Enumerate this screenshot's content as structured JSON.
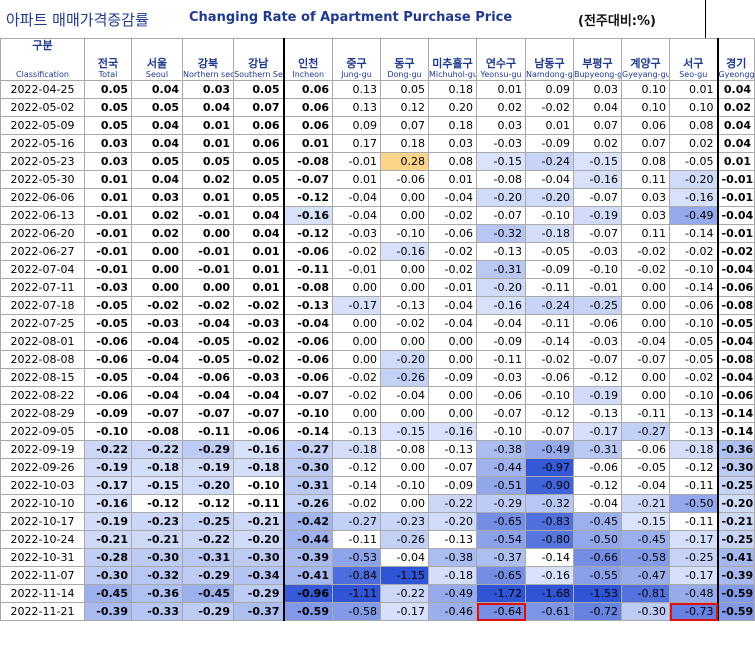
{
  "title": {
    "korean": "아파트 매매가격증감률",
    "english": "Changing Rate of Apartment Purchase Price",
    "unit": "(전주대비:%)"
  },
  "columns": [
    {
      "key": "date",
      "ko": "구분",
      "en": "Classification"
    },
    {
      "key": "total",
      "ko": "전국",
      "en": "Total"
    },
    {
      "key": "seoul",
      "ko": "서울",
      "en": "Seoul"
    },
    {
      "key": "northern",
      "ko": "강북",
      "en": "Northern seoul"
    },
    {
      "key": "southern",
      "ko": "강남",
      "en": "Southern Seoul"
    },
    {
      "key": "incheon",
      "ko": "인천",
      "en": "Incheon"
    },
    {
      "key": "jung",
      "ko": "중구",
      "en": "Jung-gu"
    },
    {
      "key": "dong",
      "ko": "동구",
      "en": "Dong-gu"
    },
    {
      "key": "michuhol",
      "ko": "미추홀구",
      "en": "Michuhol-gu"
    },
    {
      "key": "yeonsu",
      "ko": "연수구",
      "en": "Yeonsu-gu"
    },
    {
      "key": "namdong",
      "ko": "남동구",
      "en": "Namdong-gu"
    },
    {
      "key": "bupyeong",
      "ko": "부평구",
      "en": "Bupyeong-gu"
    },
    {
      "key": "gyeyang",
      "ko": "계양구",
      "en": "Gyeyang-gu"
    },
    {
      "key": "seo",
      "ko": "서구",
      "en": "Seo-gu"
    },
    {
      "key": "gyeonggi",
      "ko": "경기",
      "en": "Gyeonggi-do"
    }
  ],
  "rows": [
    {
      "date": "2022-04-25",
      "v": [
        "0.05",
        "0.04",
        "0.03",
        "0.05",
        "0.06",
        "0.13",
        "0.05",
        "0.18",
        "0.01",
        "0.09",
        "0.03",
        "0.10",
        "0.01",
        "0.04"
      ]
    },
    {
      "date": "2022-05-02",
      "v": [
        "0.05",
        "0.05",
        "0.04",
        "0.07",
        "0.06",
        "0.13",
        "0.12",
        "0.20",
        "0.02",
        "-0.02",
        "0.04",
        "0.10",
        "0.10",
        "0.02"
      ]
    },
    {
      "date": "2022-05-09",
      "v": [
        "0.05",
        "0.04",
        "0.01",
        "0.06",
        "0.06",
        "0.09",
        "0.07",
        "0.18",
        "0.03",
        "0.01",
        "0.07",
        "0.06",
        "0.08",
        "0.04"
      ]
    },
    {
      "date": "2022-05-16",
      "v": [
        "0.03",
        "0.04",
        "0.01",
        "0.06",
        "0.01",
        "0.17",
        "0.18",
        "0.03",
        "-0.03",
        "-0.09",
        "0.02",
        "0.07",
        "0.02",
        "0.04"
      ]
    },
    {
      "date": "2022-05-23",
      "v": [
        "0.03",
        "0.05",
        "0.05",
        "0.05",
        "-0.08",
        "-0.01",
        "0.28",
        "0.08",
        "-0.15",
        "-0.24",
        "-0.15",
        "0.08",
        "-0.05",
        "0.01"
      ]
    },
    {
      "date": "2022-05-30",
      "v": [
        "0.01",
        "0.04",
        "0.02",
        "0.05",
        "-0.07",
        "0.01",
        "-0.06",
        "0.01",
        "-0.08",
        "-0.04",
        "-0.16",
        "0.11",
        "-0.20",
        "-0.01"
      ]
    },
    {
      "date": "2022-06-06",
      "v": [
        "0.01",
        "0.03",
        "0.01",
        "0.05",
        "-0.12",
        "-0.04",
        "0.00",
        "-0.04",
        "-0.20",
        "-0.20",
        "-0.07",
        "0.03",
        "-0.16",
        "-0.01"
      ]
    },
    {
      "date": "2022-06-13",
      "v": [
        "-0.01",
        "0.02",
        "-0.01",
        "0.04",
        "-0.16",
        "-0.04",
        "0.00",
        "-0.02",
        "-0.07",
        "-0.10",
        "-0.19",
        "0.03",
        "-0.49",
        "-0.04"
      ]
    },
    {
      "date": "2022-06-20",
      "v": [
        "-0.01",
        "0.02",
        "0.00",
        "0.04",
        "-0.12",
        "-0.03",
        "-0.10",
        "-0.06",
        "-0.32",
        "-0.18",
        "-0.07",
        "0.11",
        "-0.14",
        "-0.01"
      ]
    },
    {
      "date": "2022-06-27",
      "v": [
        "-0.01",
        "0.00",
        "-0.01",
        "0.01",
        "-0.06",
        "-0.02",
        "-0.16",
        "-0.02",
        "-0.13",
        "-0.05",
        "-0.03",
        "-0.02",
        "-0.02",
        "-0.02"
      ]
    },
    {
      "date": "2022-07-04",
      "v": [
        "-0.01",
        "0.00",
        "-0.01",
        "0.01",
        "-0.11",
        "-0.01",
        "0.00",
        "-0.02",
        "-0.31",
        "-0.09",
        "-0.10",
        "-0.02",
        "-0.10",
        "-0.04"
      ]
    },
    {
      "date": "2022-07-11",
      "v": [
        "-0.03",
        "0.00",
        "0.00",
        "0.01",
        "-0.08",
        "0.00",
        "0.00",
        "-0.01",
        "-0.20",
        "-0.11",
        "-0.01",
        "0.00",
        "-0.14",
        "-0.06"
      ]
    },
    {
      "date": "2022-07-18",
      "v": [
        "-0.05",
        "-0.02",
        "-0.02",
        "-0.02",
        "-0.13",
        "-0.17",
        "-0.13",
        "-0.04",
        "-0.16",
        "-0.24",
        "-0.25",
        "0.00",
        "-0.06",
        "-0.08"
      ]
    },
    {
      "date": "2022-07-25",
      "v": [
        "-0.05",
        "-0.03",
        "-0.04",
        "-0.03",
        "-0.04",
        "0.00",
        "-0.02",
        "-0.04",
        "-0.04",
        "-0.11",
        "-0.06",
        "0.00",
        "-0.10",
        "-0.05"
      ]
    },
    {
      "date": "2022-08-01",
      "v": [
        "-0.06",
        "-0.04",
        "-0.05",
        "-0.02",
        "-0.06",
        "0.00",
        "0.00",
        "0.00",
        "-0.09",
        "-0.14",
        "-0.03",
        "-0.04",
        "-0.05",
        "-0.04"
      ]
    },
    {
      "date": "2022-08-08",
      "v": [
        "-0.06",
        "-0.04",
        "-0.05",
        "-0.02",
        "-0.06",
        "0.00",
        "-0.20",
        "0.00",
        "-0.11",
        "-0.02",
        "-0.07",
        "-0.07",
        "-0.05",
        "-0.08"
      ]
    },
    {
      "date": "2022-08-15",
      "v": [
        "-0.05",
        "-0.04",
        "-0.06",
        "-0.03",
        "-0.06",
        "-0.02",
        "-0.26",
        "-0.09",
        "-0.03",
        "-0.06",
        "-0.12",
        "0.00",
        "-0.02",
        "-0.04"
      ]
    },
    {
      "date": "2022-08-22",
      "v": [
        "-0.06",
        "-0.04",
        "-0.04",
        "-0.04",
        "-0.07",
        "-0.02",
        "-0.04",
        "0.00",
        "-0.06",
        "-0.10",
        "-0.19",
        "0.00",
        "-0.10",
        "-0.06"
      ]
    },
    {
      "date": "2022-08-29",
      "v": [
        "-0.09",
        "-0.07",
        "-0.07",
        "-0.07",
        "-0.10",
        "0.00",
        "0.00",
        "0.00",
        "-0.07",
        "-0.12",
        "-0.13",
        "-0.11",
        "-0.13",
        "-0.14"
      ]
    },
    {
      "date": "2022-09-05",
      "v": [
        "-0.10",
        "-0.08",
        "-0.11",
        "-0.06",
        "-0.14",
        "-0.13",
        "-0.15",
        "-0.16",
        "-0.10",
        "-0.07",
        "-0.17",
        "-0.27",
        "-0.13",
        "-0.14"
      ]
    },
    {
      "date": "2022-09-19",
      "v": [
        "-0.22",
        "-0.22",
        "-0.29",
        "-0.16",
        "-0.27",
        "-0.18",
        "-0.08",
        "-0.13",
        "-0.38",
        "-0.49",
        "-0.31",
        "-0.06",
        "-0.18",
        "-0.36"
      ]
    },
    {
      "date": "2022-09-26",
      "v": [
        "-0.19",
        "-0.18",
        "-0.19",
        "-0.18",
        "-0.30",
        "-0.12",
        "0.00",
        "-0.07",
        "-0.44",
        "-0.97",
        "-0.06",
        "-0.05",
        "-0.12",
        "-0.30"
      ]
    },
    {
      "date": "2022-10-03",
      "v": [
        "-0.17",
        "-0.15",
        "-0.20",
        "-0.10",
        "-0.31",
        "-0.14",
        "-0.10",
        "-0.09",
        "-0.51",
        "-0.90",
        "-0.12",
        "-0.04",
        "-0.11",
        "-0.25"
      ]
    },
    {
      "date": "2022-10-10",
      "v": [
        "-0.16",
        "-0.12",
        "-0.12",
        "-0.11",
        "-0.26",
        "-0.02",
        "0.00",
        "-0.22",
        "-0.29",
        "-0.32",
        "-0.04",
        "-0.21",
        "-0.50",
        "-0.20"
      ]
    },
    {
      "date": "2022-10-17",
      "v": [
        "-0.19",
        "-0.23",
        "-0.25",
        "-0.21",
        "-0.42",
        "-0.27",
        "-0.23",
        "-0.20",
        "-0.65",
        "-0.83",
        "-0.45",
        "-0.15",
        "-0.11",
        "-0.21"
      ]
    },
    {
      "date": "2022-10-24",
      "v": [
        "-0.21",
        "-0.21",
        "-0.22",
        "-0.20",
        "-0.44",
        "-0.11",
        "-0.26",
        "-0.13",
        "-0.54",
        "-0.80",
        "-0.50",
        "-0.45",
        "-0.17",
        "-0.25"
      ]
    },
    {
      "date": "2022-10-31",
      "v": [
        "-0.28",
        "-0.30",
        "-0.31",
        "-0.30",
        "-0.39",
        "-0.53",
        "-0.04",
        "-0.38",
        "-0.37",
        "-0.14",
        "-0.66",
        "-0.58",
        "-0.25",
        "-0.41"
      ]
    },
    {
      "date": "2022-11-07",
      "v": [
        "-0.30",
        "-0.32",
        "-0.29",
        "-0.34",
        "-0.41",
        "-0.84",
        "-1.15",
        "-0.18",
        "-0.65",
        "-0.16",
        "-0.55",
        "-0.47",
        "-0.17",
        "-0.39"
      ]
    },
    {
      "date": "2022-11-14",
      "v": [
        "-0.45",
        "-0.36",
        "-0.45",
        "-0.29",
        "-0.96",
        "-1.11",
        "-0.22",
        "-0.49",
        "-1.72",
        "-1.68",
        "-1.53",
        "-0.81",
        "-0.48",
        "-0.59"
      ]
    },
    {
      "date": "2022-11-21",
      "v": [
        "-0.39",
        "-0.33",
        "-0.29",
        "-0.37",
        "-0.59",
        "-0.58",
        "-0.17",
        "-0.46",
        "-0.64",
        "-0.61",
        "-0.72",
        "-0.30",
        "-0.73",
        "-0.59"
      ]
    }
  ],
  "highlighted_cells": [
    {
      "date": "2022-11-21",
      "column": "yeonsu",
      "box_color": "#e01010"
    },
    {
      "date": "2022-11-21",
      "column": "seo",
      "box_color": "#e01010"
    }
  ],
  "colors": {
    "header_text": "#1f3a8a",
    "positive_highlight": "#fdd58a",
    "scale_light": "#dbe4fb",
    "scale_dark": "#2f54d6",
    "box": "#e01010"
  }
}
